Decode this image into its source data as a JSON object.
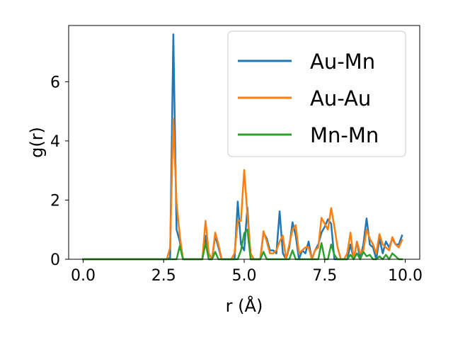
{
  "chart_data": {
    "type": "line",
    "xlabel": "r (Å)",
    "ylabel": "g(r)",
    "xlim": [
      -0.45,
      10.45
    ],
    "ylim": [
      0,
      7.9
    ],
    "xticks": [
      "0.0",
      "2.5",
      "5.0",
      "7.5",
      "10.0"
    ],
    "xtick_values": [
      0,
      2.5,
      5,
      7.5,
      10
    ],
    "yticks": [
      "0",
      "2",
      "4",
      "6"
    ],
    "ytick_values": [
      0,
      2,
      4,
      6
    ],
    "grid": false,
    "legend_position": "top-right",
    "series": [
      {
        "name": "Au-Mn",
        "color": "#1f77b4",
        "x": [
          0,
          2.5,
          2.6,
          2.7,
          2.8,
          2.9,
          3.0,
          3.1,
          3.2,
          3.5,
          3.7,
          3.8,
          3.9,
          4.0,
          4.1,
          4.2,
          4.3,
          4.5,
          4.6,
          4.7,
          4.8,
          4.9,
          5.0,
          5.1,
          5.2,
          5.3,
          5.5,
          5.6,
          5.7,
          5.8,
          5.9,
          6.0,
          6.1,
          6.2,
          6.3,
          6.4,
          6.5,
          6.6,
          6.7,
          6.8,
          6.9,
          7.0,
          7.1,
          7.2,
          7.3,
          7.4,
          7.5,
          7.6,
          7.7,
          7.8,
          7.9,
          8.0,
          8.1,
          8.2,
          8.3,
          8.4,
          8.5,
          8.6,
          8.7,
          8.8,
          8.9,
          9.0,
          9.1,
          9.2,
          9.3,
          9.4,
          9.5,
          9.6,
          9.7,
          9.8,
          9.9
        ],
        "y": [
          0,
          0,
          0,
          0.05,
          7.6,
          1.0,
          0.6,
          0,
          0,
          0,
          0,
          0.8,
          0,
          0,
          0.8,
          0.4,
          0,
          0,
          0,
          0,
          1.95,
          0.5,
          0.3,
          1.75,
          0,
          0,
          0,
          0.9,
          0.7,
          0.3,
          0.3,
          0.2,
          1.62,
          0.2,
          0,
          0.4,
          1.25,
          0.8,
          0,
          0.3,
          0.2,
          0.6,
          0,
          0.3,
          0.5,
          0.9,
          1.1,
          1.35,
          1.2,
          0,
          0,
          0,
          0,
          0,
          0.5,
          0,
          0.6,
          0,
          0.5,
          1.38,
          0.5,
          0.4,
          0,
          0.7,
          0.2,
          0.6,
          0.4,
          0.7,
          0.5,
          0.5,
          0.8
        ]
      },
      {
        "name": "Au-Au",
        "color": "#ff7f0e",
        "x": [
          0,
          2.5,
          2.6,
          2.7,
          2.8,
          2.9,
          3.0,
          3.1,
          3.2,
          3.5,
          3.7,
          3.8,
          3.9,
          4.0,
          4.1,
          4.2,
          4.3,
          4.5,
          4.6,
          4.7,
          4.8,
          4.9,
          5.0,
          5.1,
          5.2,
          5.3,
          5.5,
          5.6,
          5.7,
          5.8,
          5.9,
          6.0,
          6.1,
          6.2,
          6.3,
          6.4,
          6.5,
          6.6,
          6.7,
          6.8,
          6.9,
          7.0,
          7.1,
          7.2,
          7.3,
          7.4,
          7.5,
          7.6,
          7.7,
          7.8,
          7.9,
          8.0,
          8.1,
          8.2,
          8.3,
          8.4,
          8.5,
          8.6,
          8.7,
          8.8,
          8.9,
          9.0,
          9.1,
          9.2,
          9.3,
          9.4,
          9.5,
          9.6,
          9.7,
          9.8,
          9.9
        ],
        "y": [
          0,
          0,
          0,
          0.4,
          4.75,
          1.9,
          0.8,
          0,
          0,
          0,
          0,
          1.3,
          0.2,
          0,
          0.9,
          0.5,
          0,
          0,
          0,
          0.2,
          1.3,
          1.3,
          3.02,
          1.5,
          0.2,
          0,
          0,
          0.95,
          0.6,
          0.2,
          0.2,
          0.3,
          0.6,
          0.8,
          0,
          0.5,
          1.0,
          1.15,
          0.2,
          0.3,
          0.4,
          0.4,
          0,
          0.3,
          0.4,
          1.4,
          1.2,
          1.0,
          1.73,
          1.1,
          0.4,
          0,
          0,
          0.2,
          0.9,
          0,
          0.6,
          0.2,
          0.3,
          1.0,
          0.7,
          0.5,
          0.2,
          0.85,
          0.5,
          0.4,
          0.3,
          0.75,
          0.5,
          0.4,
          0.65
        ]
      },
      {
        "name": "Mn-Mn",
        "color": "#2ca02c",
        "x": [
          0,
          2.5,
          2.6,
          2.7,
          2.8,
          2.9,
          3.0,
          3.1,
          3.2,
          3.5,
          3.7,
          3.8,
          3.9,
          4.0,
          4.1,
          4.2,
          4.3,
          4.5,
          4.6,
          4.7,
          4.8,
          4.9,
          5.0,
          5.1,
          5.2,
          5.3,
          5.5,
          5.6,
          5.7,
          5.8,
          5.9,
          6.0,
          6.1,
          6.2,
          6.3,
          6.4,
          6.5,
          6.6,
          6.7,
          6.8,
          6.9,
          7.0,
          7.1,
          7.2,
          7.3,
          7.4,
          7.5,
          7.6,
          7.7,
          7.8,
          7.9,
          8.0,
          8.1,
          8.2,
          8.3,
          8.4,
          8.5,
          8.6,
          8.7,
          8.8,
          8.9,
          9.0,
          9.1,
          9.2,
          9.3,
          9.4,
          9.5,
          9.6,
          9.7,
          9.8,
          9.9
        ],
        "y": [
          0,
          0,
          0,
          0,
          0,
          0,
          0.45,
          0,
          0,
          0,
          0,
          0.55,
          0,
          0,
          0.25,
          0,
          0,
          0,
          0,
          0,
          0,
          0.3,
          0.88,
          1.0,
          0,
          0,
          0,
          0.25,
          0,
          0,
          0,
          0,
          0,
          0,
          0,
          0,
          0.3,
          0,
          0,
          0,
          0,
          0,
          0,
          0,
          0,
          0.55,
          0,
          0,
          0.5,
          0.15,
          0,
          0,
          0,
          0,
          0.15,
          0,
          0.2,
          0,
          0.25,
          0.1,
          0.15,
          0,
          0,
          0.1,
          0,
          0.15,
          0,
          0.2,
          0.1,
          0,
          0
        ]
      }
    ]
  }
}
